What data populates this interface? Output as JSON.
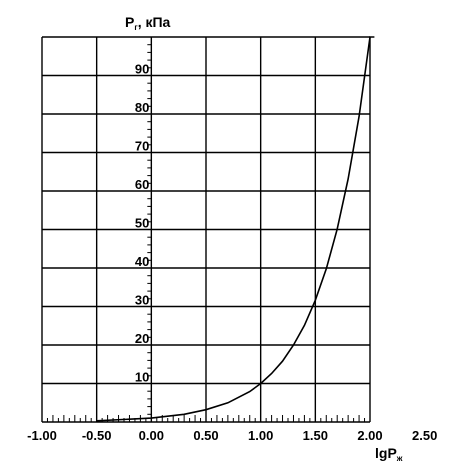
{
  "chart_data": {
    "type": "line",
    "title": "",
    "ylabel": {
      "main": "P",
      "sub": "г",
      "unit": ", кПа"
    },
    "xlabel": {
      "main": "lgP",
      "sub": "ж"
    },
    "xlim": [
      -1.0,
      2.0
    ],
    "ylim": [
      0,
      100
    ],
    "x_ticks": [
      "-1.00",
      "-0.50",
      "0.00",
      "0.50",
      "1.00",
      "1.50",
      "2.00",
      "2.50"
    ],
    "x_tick_values": [
      -1.0,
      -0.5,
      0.0,
      0.5,
      1.0,
      1.5,
      2.0,
      2.5
    ],
    "y_ticks": [
      "10",
      "20",
      "30",
      "40",
      "50",
      "60",
      "70",
      "80",
      "90"
    ],
    "y_tick_values": [
      10,
      20,
      30,
      40,
      50,
      60,
      70,
      80,
      90
    ],
    "grid": true,
    "series": [
      {
        "x": [
          -0.5,
          0.0,
          0.3,
          0.5,
          0.7,
          0.9,
          1.0,
          1.1,
          1.2,
          1.3,
          1.4,
          1.5,
          1.6,
          1.7,
          1.8,
          1.9,
          2.0,
          2.04
        ],
        "y": [
          0.3,
          1.0,
          2.0,
          3.2,
          5.0,
          7.9,
          10.0,
          12.6,
          15.8,
          20.0,
          25.1,
          31.6,
          39.8,
          50.1,
          63.1,
          79.4,
          100.0,
          100.0
        ]
      }
    ]
  }
}
